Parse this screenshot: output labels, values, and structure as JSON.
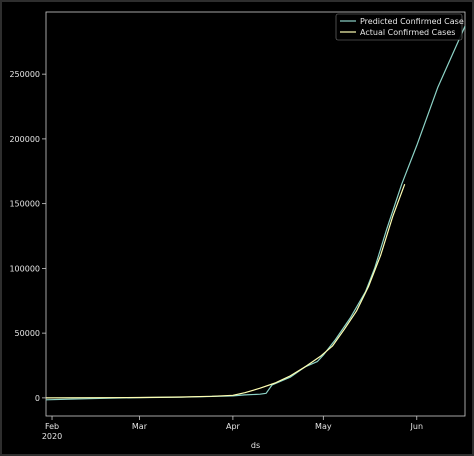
{
  "chart_data": {
    "type": "line",
    "title": "",
    "xlabel": "ds",
    "ylabel": "",
    "x_ticks": [
      {
        "label": "Feb",
        "sublabel": "2020",
        "date": "2020-02-01"
      },
      {
        "label": "Mar",
        "sublabel": "",
        "date": "2020-03-01"
      },
      {
        "label": "Apr",
        "sublabel": "",
        "date": "2020-04-01"
      },
      {
        "label": "May",
        "sublabel": "",
        "date": "2020-05-01"
      },
      {
        "label": "Jun",
        "sublabel": "",
        "date": "2020-06-01"
      }
    ],
    "y_ticks": [
      0,
      50000,
      100000,
      150000,
      200000,
      250000
    ],
    "xlim": [
      "2020-01-30",
      "2020-06-17"
    ],
    "ylim": [
      -14000,
      298000
    ],
    "grid": false,
    "legend_position": "top-right",
    "series": [
      {
        "name": "Predicted Confirmed Case",
        "color": "#8dd3c7",
        "points": [
          [
            "2020-01-30",
            -1500
          ],
          [
            "2020-02-15",
            -500
          ],
          [
            "2020-03-01",
            200
          ],
          [
            "2020-03-15",
            500
          ],
          [
            "2020-04-01",
            1500
          ],
          [
            "2020-04-05",
            2300
          ],
          [
            "2020-04-10",
            2800
          ],
          [
            "2020-04-12",
            3500
          ],
          [
            "2020-04-14",
            10000
          ],
          [
            "2020-04-20",
            16000
          ],
          [
            "2020-04-25",
            24000
          ],
          [
            "2020-04-29",
            28000
          ],
          [
            "2020-05-01",
            33000
          ],
          [
            "2020-05-05",
            45000
          ],
          [
            "2020-05-10",
            62000
          ],
          [
            "2020-05-15",
            82000
          ],
          [
            "2020-05-18",
            100000
          ],
          [
            "2020-05-22",
            130000
          ],
          [
            "2020-05-27",
            165000
          ],
          [
            "2020-06-01",
            195000
          ],
          [
            "2020-06-08",
            240000
          ],
          [
            "2020-06-17",
            287000
          ]
        ]
      },
      {
        "name": "Actual Confirmed Cases",
        "color": "#ffffb3",
        "points": [
          [
            "2020-01-30",
            0
          ],
          [
            "2020-02-15",
            100
          ],
          [
            "2020-03-01",
            300
          ],
          [
            "2020-03-15",
            700
          ],
          [
            "2020-03-25",
            1200
          ],
          [
            "2020-04-01",
            2000
          ],
          [
            "2020-04-05",
            4000
          ],
          [
            "2020-04-10",
            7500
          ],
          [
            "2020-04-15",
            11500
          ],
          [
            "2020-04-20",
            17000
          ],
          [
            "2020-04-25",
            24000
          ],
          [
            "2020-04-30",
            32000
          ],
          [
            "2020-05-04",
            40000
          ],
          [
            "2020-05-08",
            53000
          ],
          [
            "2020-05-12",
            67000
          ],
          [
            "2020-05-16",
            86000
          ],
          [
            "2020-05-20",
            110000
          ],
          [
            "2020-05-24",
            140000
          ],
          [
            "2020-05-28",
            165000
          ]
        ]
      }
    ]
  }
}
